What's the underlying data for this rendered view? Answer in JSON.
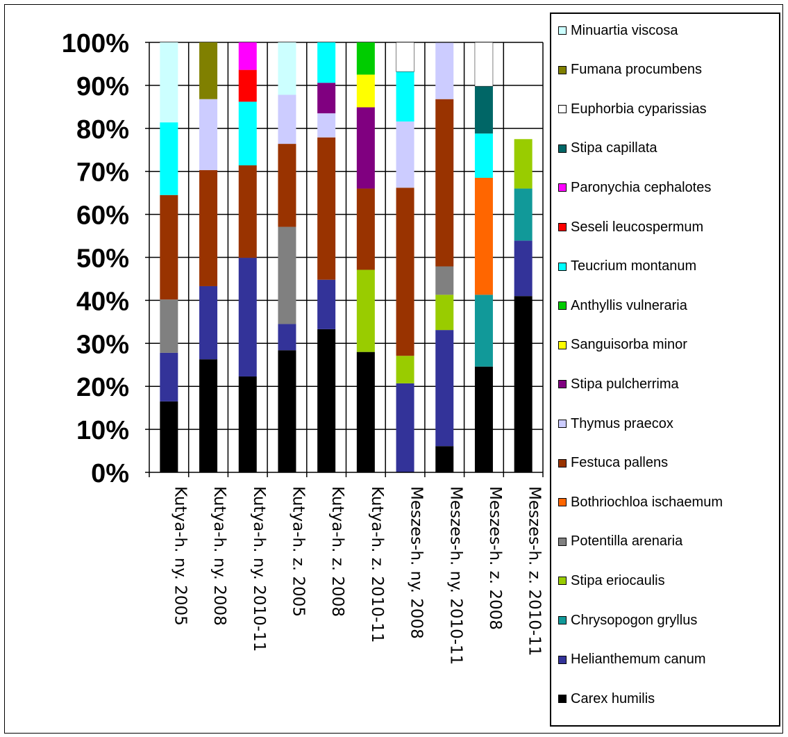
{
  "chart_data": {
    "type": "bar",
    "stacked": true,
    "percent": true,
    "categories": [
      "Kutya-h. ny. 2005",
      "Kutya-h. ny. 2008",
      "Kutya-h. ny. 2010-11",
      "Kutya-h. z. 2005",
      "Kutya-h. z. 2008",
      "Kutya-h. z. 2010-11",
      "Meszes-h. ny. 2008",
      "Meszes-h. ny. 2010-11",
      "Meszes-h. z. 2008",
      "Meszes-h. z. 2010-11"
    ],
    "series": [
      {
        "name": "Carex humilis",
        "color": "#000000",
        "values": [
          16.5,
          26.3,
          22.3,
          28.4,
          33.3,
          28.0,
          0,
          6.1,
          24.6,
          41.0
        ]
      },
      {
        "name": "Helianthemum canum",
        "color": "#333399",
        "values": [
          11.3,
          17.0,
          27.6,
          6.1,
          11.5,
          0,
          20.7,
          27.0,
          0,
          12.9
        ]
      },
      {
        "name": "Chrysopogon gryllus",
        "color": "#119999",
        "values": [
          0,
          0,
          0,
          0,
          0,
          0,
          0,
          0,
          16.7,
          12.1
        ]
      },
      {
        "name": "Stipa eriocaulis",
        "color": "#99cc00",
        "values": [
          0,
          0,
          0,
          0,
          0,
          19.1,
          6.4,
          8.2,
          0,
          11.5
        ]
      },
      {
        "name": "Potentilla arenaria",
        "color": "#808080",
        "values": [
          12.4,
          0,
          0,
          22.6,
          0,
          0,
          0,
          6.6,
          0,
          0
        ]
      },
      {
        "name": "Bothriochloa ischaemum",
        "color": "#ff6600",
        "values": [
          0,
          0,
          0,
          0,
          0,
          0,
          0,
          0,
          27.2,
          0
        ]
      },
      {
        "name": "Festuca pallens",
        "color": "#993300",
        "values": [
          24.3,
          27.0,
          21.5,
          19.3,
          33.1,
          18.9,
          39.1,
          38.9,
          0,
          0
        ]
      },
      {
        "name": "Thymus praecox",
        "color": "#ccccff",
        "values": [
          0,
          16.5,
          0,
          11.4,
          5.6,
          0,
          15.4,
          13.1,
          0,
          0
        ]
      },
      {
        "name": "Stipa pulcherrima",
        "color": "#800080",
        "values": [
          0,
          0,
          0,
          0,
          7.1,
          18.9,
          0,
          0,
          0,
          0
        ]
      },
      {
        "name": "Sanguisorba minor",
        "color": "#ffff00",
        "values": [
          0,
          0,
          0,
          0,
          0,
          7.6,
          0,
          0,
          0,
          0
        ]
      },
      {
        "name": "Anthyllis vulneraria",
        "color": "#00cc00",
        "values": [
          0,
          0,
          0,
          0,
          0,
          7.5,
          0,
          0,
          0,
          0
        ]
      },
      {
        "name": "Teucrium montanum",
        "color": "#00ffff",
        "values": [
          16.9,
          0,
          14.8,
          0,
          9.4,
          0,
          11.6,
          0,
          10.3,
          0
        ]
      },
      {
        "name": "Seseli leucospermum",
        "color": "#ff0000",
        "values": [
          0,
          0,
          7.4,
          0,
          0,
          0,
          0,
          0,
          0,
          0
        ]
      },
      {
        "name": "Paronychia cephalotes",
        "color": "#ff00ff",
        "values": [
          0,
          0,
          6.4,
          0,
          0,
          0,
          0,
          0,
          0,
          0
        ]
      },
      {
        "name": "Stipa capillata",
        "color": "#006666",
        "values": [
          0,
          0,
          0,
          0,
          0,
          0,
          0,
          0,
          11.0,
          0
        ]
      },
      {
        "name": "Euphorbia cyparissias",
        "color": "#ffffff",
        "values": [
          0,
          0,
          0,
          0,
          0,
          0,
          6.8,
          0,
          10.2,
          0
        ]
      },
      {
        "name": "Fumana procumbens",
        "color": "#808000",
        "values": [
          0,
          13.2,
          0,
          0,
          0,
          0,
          0,
          0,
          0,
          0
        ]
      },
      {
        "name": "Minuartia viscosa",
        "color": "#ccffff",
        "values": [
          18.6,
          0,
          0,
          12.2,
          0,
          0,
          0,
          0,
          0,
          0
        ]
      }
    ],
    "ylim": [
      0,
      100
    ],
    "yticks": [
      "0%",
      "10%",
      "20%",
      "30%",
      "40%",
      "50%",
      "60%",
      "70%",
      "80%",
      "90%",
      "100%"
    ],
    "grid": true,
    "legend_position": "right"
  }
}
